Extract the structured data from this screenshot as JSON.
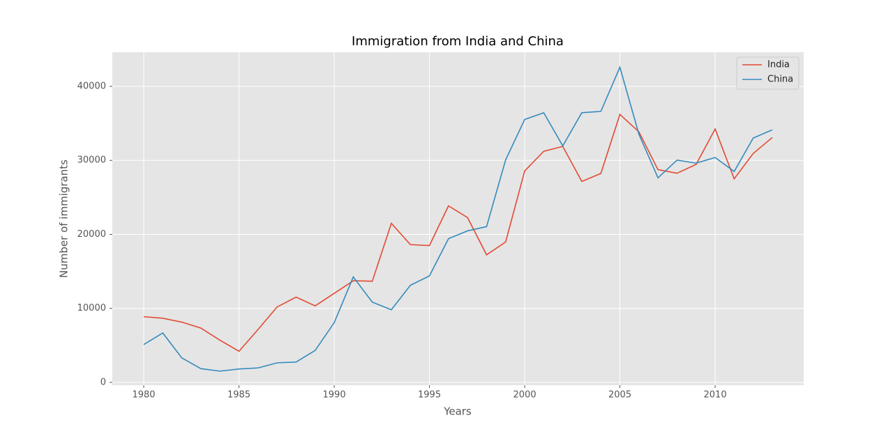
{
  "chart_data": {
    "type": "line",
    "title": "Immigration from India and China",
    "x_label": "Years",
    "y_label": "Number of immigrants",
    "x": [
      1980,
      1981,
      1982,
      1983,
      1984,
      1985,
      1986,
      1987,
      1988,
      1989,
      1990,
      1991,
      1992,
      1993,
      1994,
      1995,
      1996,
      1997,
      1998,
      1999,
      2000,
      2001,
      2002,
      2003,
      2004,
      2005,
      2006,
      2007,
      2008,
      2009,
      2010,
      2011,
      2012,
      2013
    ],
    "series": [
      {
        "name": "India",
        "color": "#E24A33",
        "values": [
          8880,
          8670,
          8147,
          7338,
          5704,
          4211,
          7150,
          10189,
          11522,
          10343,
          12041,
          13734,
          13673,
          21496,
          18620,
          18489,
          23859,
          22268,
          17241,
          18974,
          28572,
          31223,
          31889,
          27155,
          28235,
          36210,
          33848,
          28742,
          28261,
          29456,
          34235,
          27509,
          30933,
          33087
        ]
      },
      {
        "name": "China",
        "color": "#348ABD",
        "values": [
          5123,
          6682,
          3308,
          1863,
          1527,
          1816,
          1960,
          2643,
          2758,
          4323,
          8076,
          14255,
          10846,
          9817,
          13128,
          14398,
          19415,
          20475,
          21049,
          30069,
          35529,
          36434,
          31961,
          36439,
          36619,
          42584,
          33518,
          27642,
          30037,
          29622,
          30391,
          28502,
          33024,
          34129
        ]
      }
    ],
    "xlim": [
      1978.35,
      2014.65
    ],
    "xticks": [
      1980,
      1985,
      1990,
      1995,
      2000,
      2005,
      2010
    ],
    "ylim": [
      -380,
      44610
    ],
    "yticks": [
      0,
      10000,
      20000,
      30000,
      40000
    ],
    "grid": true,
    "legend": "upper right"
  }
}
